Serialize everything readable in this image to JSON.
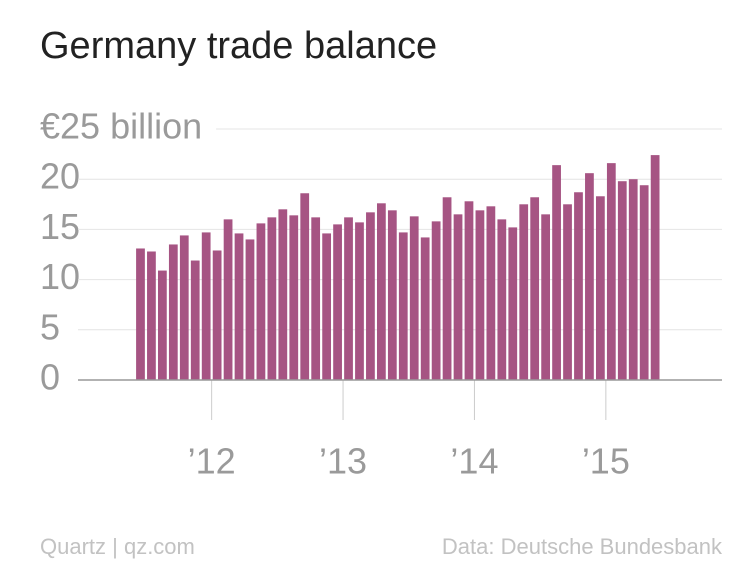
{
  "chart_data": {
    "type": "bar",
    "title": "Germany trade balance",
    "source_left": "Quartz | qz.com",
    "source_right": "Data: Deutsche Bundesbank",
    "categories": [
      null,
      null,
      null,
      null,
      null,
      null,
      null,
      "’12",
      null,
      null,
      null,
      null,
      null,
      null,
      null,
      null,
      null,
      null,
      null,
      "’13",
      null,
      null,
      null,
      null,
      null,
      null,
      null,
      null,
      null,
      null,
      null,
      "’14",
      null,
      null,
      null,
      null,
      null,
      null,
      null,
      null,
      null,
      null,
      null,
      "’15",
      null,
      null,
      null,
      null
    ],
    "values": [
      13.1,
      12.8,
      10.9,
      13.5,
      14.4,
      11.9,
      14.7,
      12.9,
      16.0,
      14.6,
      14.0,
      15.6,
      16.2,
      17.0,
      16.4,
      18.6,
      16.2,
      14.6,
      15.5,
      16.2,
      15.7,
      16.7,
      17.6,
      16.9,
      14.7,
      16.3,
      14.2,
      15.8,
      18.2,
      16.5,
      17.8,
      16.9,
      17.3,
      16.0,
      15.2,
      17.5,
      18.2,
      16.5,
      21.4,
      17.5,
      18.7,
      20.6,
      18.3,
      21.6,
      19.8,
      20.0,
      19.4,
      22.4
    ],
    "color": "#a65483",
    "ylim": [
      0,
      25
    ],
    "yticks": [
      0,
      5,
      10,
      15,
      20,
      {
        "value": 25,
        "label": "€25 billion"
      }
    ],
    "grid": true
  }
}
